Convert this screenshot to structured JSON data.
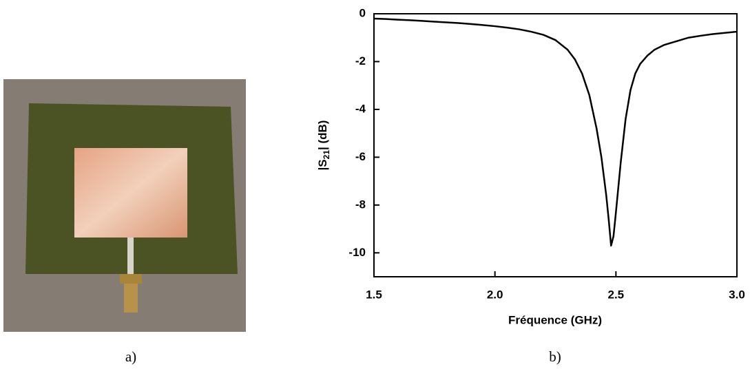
{
  "captions": [
    "a)",
    "b)"
  ],
  "chart_data": {
    "type": "line",
    "xlabel": "Fréquence (GHz)",
    "ylabel": {
      "prefix": "|S",
      "sub": "21",
      "suffix": "| (dB)"
    },
    "x": [
      1.5,
      1.55,
      1.6,
      1.65,
      1.7,
      1.75,
      1.8,
      1.85,
      1.9,
      1.95,
      2.0,
      2.05,
      2.1,
      2.15,
      2.2,
      2.25,
      2.3,
      2.33,
      2.36,
      2.39,
      2.42,
      2.44,
      2.46,
      2.47,
      2.48,
      2.49,
      2.5,
      2.52,
      2.54,
      2.56,
      2.58,
      2.6,
      2.63,
      2.66,
      2.7,
      2.75,
      2.8,
      2.85,
      2.9,
      2.95,
      3.0
    ],
    "values": [
      -0.2,
      -0.22,
      -0.25,
      -0.27,
      -0.3,
      -0.33,
      -0.36,
      -0.39,
      -0.43,
      -0.47,
      -0.52,
      -0.58,
      -0.65,
      -0.75,
      -0.88,
      -1.1,
      -1.5,
      -1.9,
      -2.5,
      -3.4,
      -4.8,
      -6.0,
      -7.6,
      -8.6,
      -9.7,
      -9.3,
      -8.3,
      -6.2,
      -4.4,
      -3.2,
      -2.5,
      -2.1,
      -1.75,
      -1.5,
      -1.3,
      -1.15,
      -1.0,
      -0.92,
      -0.85,
      -0.8,
      -0.75
    ],
    "color": "#000000",
    "xlim": [
      1.5,
      3.0
    ],
    "xticks": [
      1.5,
      {
        "value": 2,
        "label": "2.0"
      },
      2.5,
      {
        "value": 3,
        "label": "3.0"
      }
    ],
    "ylim": [
      -11,
      0
    ],
    "yticks": [
      0,
      -2,
      -4,
      -6,
      -8,
      -10
    ]
  }
}
